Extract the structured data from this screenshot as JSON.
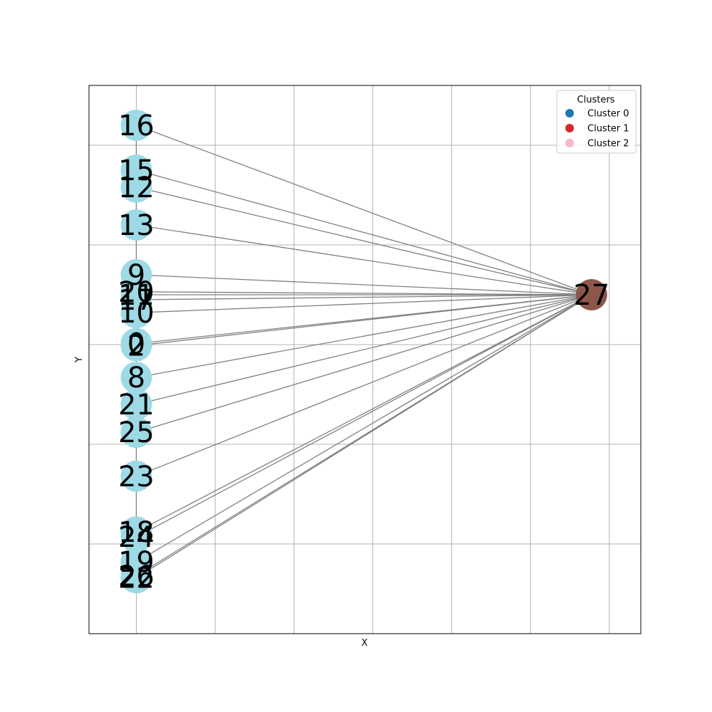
{
  "chart_data": {
    "type": "scatter",
    "subtype": "network-graph",
    "xlabel": "X",
    "ylabel": "Y",
    "grid": true,
    "xlim": [
      -0.12,
      1.28
    ],
    "ylim": [
      -0.29,
      0.26
    ],
    "xticks": [
      0,
      0.2,
      0.4,
      0.6,
      0.8,
      1.0,
      1.2
    ],
    "yticks": [
      -0.2,
      -0.1,
      0,
      0.1,
      0.2
    ],
    "legend": {
      "title": "Clusters",
      "placement": "top-right",
      "entries": [
        {
          "label": "Cluster 0",
          "color": "#1f77b4"
        },
        {
          "label": "Cluster 1",
          "color": "#d62728"
        },
        {
          "label": "Cluster 2",
          "color": "#f7b6d2"
        }
      ]
    },
    "colors": {
      "node_leaf": "#9edae5",
      "node_hub": "#8c564b",
      "edge": "#808080",
      "grid": "#b0b0b0"
    },
    "nodes": [
      {
        "id": "16",
        "x": 0,
        "y": 0.22
      },
      {
        "id": "15",
        "x": 0,
        "y": 0.175
      },
      {
        "id": "12",
        "x": 0,
        "y": 0.158
      },
      {
        "id": "13",
        "x": 0,
        "y": 0.12
      },
      {
        "id": "9",
        "x": 0,
        "y": 0.07
      },
      {
        "id": "20",
        "x": 0,
        "y": 0.053
      },
      {
        "id": "11",
        "x": 0,
        "y": 0.05
      },
      {
        "id": "17",
        "x": 0,
        "y": 0.045
      },
      {
        "id": "10",
        "x": 0,
        "y": 0.032
      },
      {
        "id": "0",
        "x": 0,
        "y": 0.001
      },
      {
        "id": "2",
        "x": 0,
        "y": -0.001
      },
      {
        "id": "8",
        "x": 0,
        "y": -0.033
      },
      {
        "id": "21",
        "x": 0,
        "y": -0.06
      },
      {
        "id": "25",
        "x": 0,
        "y": -0.088
      },
      {
        "id": "23",
        "x": 0,
        "y": -0.132
      },
      {
        "id": "18",
        "x": 0,
        "y": -0.188
      },
      {
        "id": "24",
        "x": 0,
        "y": -0.193
      },
      {
        "id": "19",
        "x": 0,
        "y": -0.218
      },
      {
        "id": "26",
        "x": 0,
        "y": -0.232
      },
      {
        "id": "22",
        "x": 0,
        "y": -0.234
      },
      {
        "id": "27",
        "x": 1.155,
        "y": 0.05,
        "hub": true
      }
    ],
    "edges": [
      [
        "16",
        "27"
      ],
      [
        "15",
        "27"
      ],
      [
        "12",
        "27"
      ],
      [
        "13",
        "27"
      ],
      [
        "9",
        "27"
      ],
      [
        "20",
        "27"
      ],
      [
        "11",
        "27"
      ],
      [
        "17",
        "27"
      ],
      [
        "10",
        "27"
      ],
      [
        "0",
        "27"
      ],
      [
        "2",
        "27"
      ],
      [
        "8",
        "27"
      ],
      [
        "21",
        "27"
      ],
      [
        "25",
        "27"
      ],
      [
        "23",
        "27"
      ],
      [
        "18",
        "27"
      ],
      [
        "24",
        "27"
      ],
      [
        "19",
        "27"
      ],
      [
        "26",
        "27"
      ],
      [
        "22",
        "27"
      ]
    ],
    "column_edges": [
      [
        "16",
        "22"
      ]
    ]
  }
}
